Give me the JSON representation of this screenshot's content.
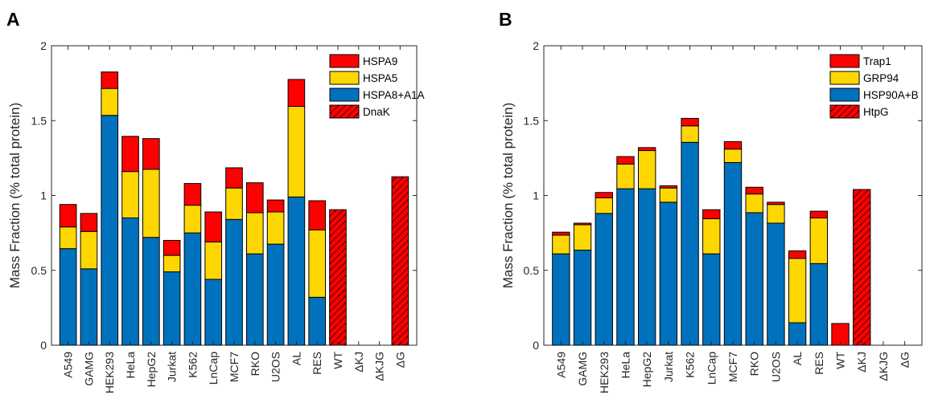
{
  "colors": {
    "blue": "#0072BD",
    "yellow": "#FFD700",
    "red": "#FF0000",
    "hatch_line": "#000000"
  },
  "chart_data": [
    {
      "type": "bar",
      "stacked": true,
      "panel": "A",
      "ylabel": "Mass Fraction (% total protein)",
      "ylim": [
        0,
        2
      ],
      "yticks": [
        "0",
        "0.5",
        "1",
        "1.5",
        "2"
      ],
      "categories": [
        "A549",
        "GAMG",
        "HEK293",
        "HeLa",
        "HepG2",
        "Jurkat",
        "K562",
        "LnCap",
        "MCF7",
        "RKO",
        "U2OS",
        "AL",
        "RES",
        "WT",
        "ΔKJ",
        "ΔKJG",
        "ΔG"
      ],
      "series": [
        {
          "name": "HSPA8+A1A",
          "color": "blue",
          "values": [
            0.645,
            0.51,
            1.535,
            0.85,
            0.72,
            0.49,
            0.75,
            0.44,
            0.84,
            0.61,
            0.675,
            0.99,
            0.32,
            0,
            0,
            0,
            0
          ]
        },
        {
          "name": "HSPA5",
          "color": "yellow",
          "values": [
            0.145,
            0.25,
            0.18,
            0.31,
            0.455,
            0.11,
            0.185,
            0.25,
            0.21,
            0.275,
            0.215,
            0.605,
            0.45,
            0,
            0,
            0,
            0
          ]
        },
        {
          "name": "HSPA9",
          "color": "red",
          "values": [
            0.15,
            0.12,
            0.11,
            0.235,
            0.205,
            0.1,
            0.145,
            0.2,
            0.135,
            0.2,
            0.08,
            0.18,
            0.195,
            0,
            0,
            0,
            0
          ]
        },
        {
          "name": "DnaK",
          "color": "red",
          "hatched": true,
          "values": [
            0,
            0,
            0,
            0,
            0,
            0,
            0,
            0,
            0,
            0,
            0,
            0,
            0,
            0.905,
            0,
            0,
            1.125
          ]
        }
      ],
      "legend": {
        "placement": "top-right",
        "order": [
          "HSPA9",
          "HSPA5",
          "HSPA8+A1A",
          "DnaK"
        ]
      }
    },
    {
      "type": "bar",
      "stacked": true,
      "panel": "B",
      "ylabel": "Mass Fraction (% total protein)",
      "ylim": [
        0,
        2
      ],
      "yticks": [
        "0",
        "0.5",
        "1",
        "1.5",
        "2"
      ],
      "categories": [
        "A549",
        "GAMG",
        "HEK293",
        "HeLa",
        "HepG2",
        "Jurkat",
        "K562",
        "LnCap",
        "MCF7",
        "RKO",
        "U2OS",
        "AL",
        "RES",
        "WT",
        "ΔKJ",
        "ΔKJG",
        "ΔG"
      ],
      "series": [
        {
          "name": "HSP90A+B",
          "color": "blue",
          "values": [
            0.61,
            0.635,
            0.88,
            1.045,
            1.045,
            0.955,
            1.355,
            0.61,
            1.22,
            0.885,
            0.815,
            0.15,
            0.545,
            0,
            0,
            0,
            0
          ]
        },
        {
          "name": "GRP94",
          "color": "yellow",
          "values": [
            0.125,
            0.17,
            0.105,
            0.165,
            0.255,
            0.095,
            0.11,
            0.235,
            0.09,
            0.125,
            0.125,
            0.43,
            0.305,
            0,
            0,
            0,
            0
          ]
        },
        {
          "name": "Trap1",
          "color": "red",
          "values": [
            0.02,
            0.01,
            0.035,
            0.05,
            0.02,
            0.015,
            0.05,
            0.06,
            0.05,
            0.045,
            0.015,
            0.05,
            0.045,
            0,
            0,
            0,
            0
          ]
        },
        {
          "name": "HtpG",
          "color": "red",
          "hatched": false,
          "values": [
            0,
            0,
            0,
            0,
            0,
            0,
            0,
            0,
            0,
            0,
            0,
            0,
            0,
            0.145,
            0,
            0,
            0
          ]
        },
        {
          "name": "HtpG",
          "color": "red",
          "hatched": true,
          "values": [
            0,
            0,
            0,
            0,
            0,
            0,
            0,
            0,
            0,
            0,
            0,
            0,
            0,
            0,
            1.04,
            0,
            0
          ]
        }
      ],
      "legend": {
        "placement": "top-right",
        "order": [
          "Trap1",
          "GRP94",
          "HSP90A+B",
          "HtpG"
        ]
      }
    }
  ]
}
